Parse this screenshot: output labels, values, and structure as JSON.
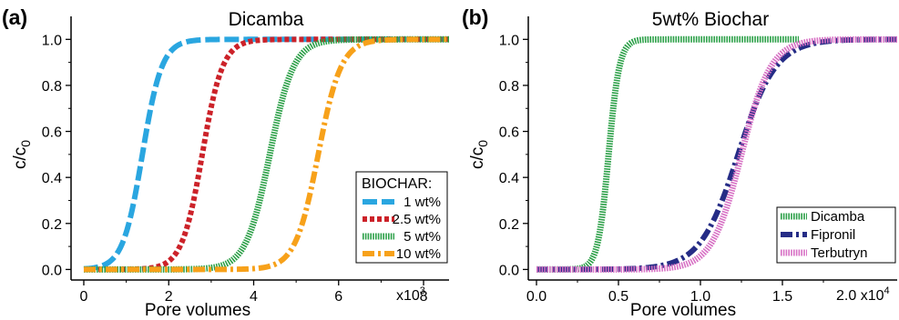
{
  "chart_data": [
    {
      "panel_label": "(a)",
      "type": "line",
      "title": "Dicamba",
      "xlabel": "Pore volumes",
      "ylabel_main": "c/c",
      "ylabel_sub": "0",
      "x_multiplier": "x10",
      "x_multiplier_exp": "3",
      "xlim": [
        -300,
        8600
      ],
      "ylim": [
        -0.03,
        1.1
      ],
      "xticks": [
        0,
        2000,
        4000,
        6000,
        8000
      ],
      "xtick_labels": [
        "0",
        "2",
        "4",
        "6",
        "8"
      ],
      "yticks": [
        0.0,
        0.2,
        0.4,
        0.6,
        0.8,
        1.0
      ],
      "ytick_labels": [
        "0.0",
        "0.2",
        "0.4",
        "0.6",
        "0.8",
        "1.0"
      ],
      "legend_title": "BIOCHAR:",
      "legend_position": "bottom-right",
      "series": [
        {
          "name": "1 wt%",
          "color": "#2aa6e0",
          "style": "long-dash",
          "x_range": [
            0,
            8600
          ],
          "center": 1380,
          "width": 230
        },
        {
          "name": "2.5 wt%",
          "color": "#cc2229",
          "style": "dotted",
          "x_range": [
            0,
            8600
          ],
          "center": 2790,
          "width": 240
        },
        {
          "name": "5 wt%",
          "color": "#2ca048",
          "style": "hatched",
          "x_range": [
            0,
            8600
          ],
          "center": 4380,
          "width": 280
        },
        {
          "name": "10 wt%",
          "color": "#f7a11a",
          "style": "dash-dot",
          "x_range": [
            0,
            8600
          ],
          "center": 5520,
          "width": 270
        }
      ]
    },
    {
      "panel_label": "(b)",
      "type": "line",
      "title": "5wt% Biochar",
      "xlabel": "Pore volumes",
      "ylabel_main": "c/c",
      "ylabel_sub": "0",
      "x_multiplier": "2.0 x10",
      "x_multiplier_exp": "4",
      "xlim": [
        -500,
        22000
      ],
      "ylim": [
        -0.03,
        1.1
      ],
      "xticks": [
        0,
        5000,
        10000,
        15000
      ],
      "xtick_labels": [
        "0.0",
        "0.5",
        "1.0",
        "1.5"
      ],
      "yticks": [
        0.0,
        0.2,
        0.4,
        0.6,
        0.8,
        1.0
      ],
      "ytick_labels": [
        "0.0",
        "0.2",
        "0.4",
        "0.6",
        "0.8",
        "1.0"
      ],
      "legend_position": "bottom-right",
      "series": [
        {
          "name": "Dicamba",
          "color": "#2ca048",
          "style": "hatched",
          "x_range": [
            0,
            16000
          ],
          "center": 4400,
          "width": 330
        },
        {
          "name": "Fipronil",
          "color": "#252c86",
          "style": "dash-dot",
          "x_range": [
            0,
            22000
          ],
          "center": 12300,
          "width": 1150
        },
        {
          "name": "Terbutryn",
          "color": "#d770c4",
          "style": "hatched",
          "x_range": [
            0,
            22000
          ],
          "center": 12500,
          "width": 900
        }
      ]
    }
  ]
}
